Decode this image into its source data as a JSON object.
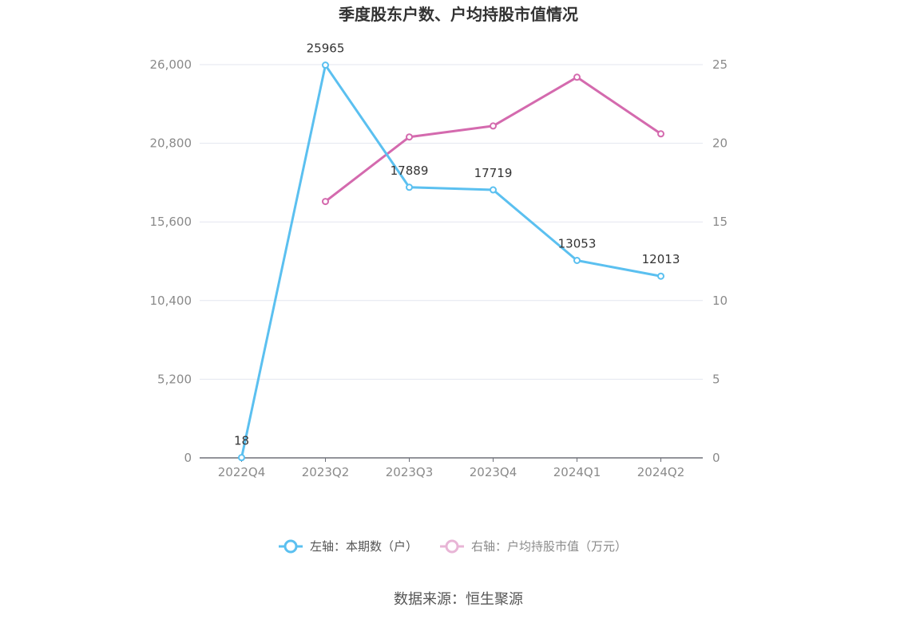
{
  "chart_data": {
    "type": "line",
    "title": "季度股东户数、户均持股市值情况",
    "categories": [
      "2022Q4",
      "2023Q2",
      "2023Q3",
      "2023Q4",
      "2024Q1",
      "2024Q2"
    ],
    "y_left": {
      "ylim": [
        0,
        26000
      ],
      "ticks": [
        "0",
        "5,200",
        "10,400",
        "15,600",
        "20,800",
        "26,000"
      ]
    },
    "y_right": {
      "ylim": [
        0,
        25
      ],
      "ticks": [
        "0",
        "5",
        "10",
        "15",
        "20",
        "25"
      ]
    },
    "series": [
      {
        "name": "左轴：本期数（户）",
        "axis": "left",
        "color": "#5bc0f0",
        "values": [
          18,
          25965,
          17889,
          17719,
          13053,
          12013
        ],
        "labels": [
          "18",
          "25965",
          "17889",
          "17719",
          "13053",
          "12013"
        ]
      },
      {
        "name": "右轴：户均持股市值（万元）",
        "axis": "right",
        "color": "#d46aae",
        "values": [
          null,
          16.3,
          20.4,
          21.1,
          24.2,
          20.6
        ]
      }
    ],
    "grid": true,
    "legend": "bottom-center"
  },
  "source": "数据来源：恒生聚源"
}
